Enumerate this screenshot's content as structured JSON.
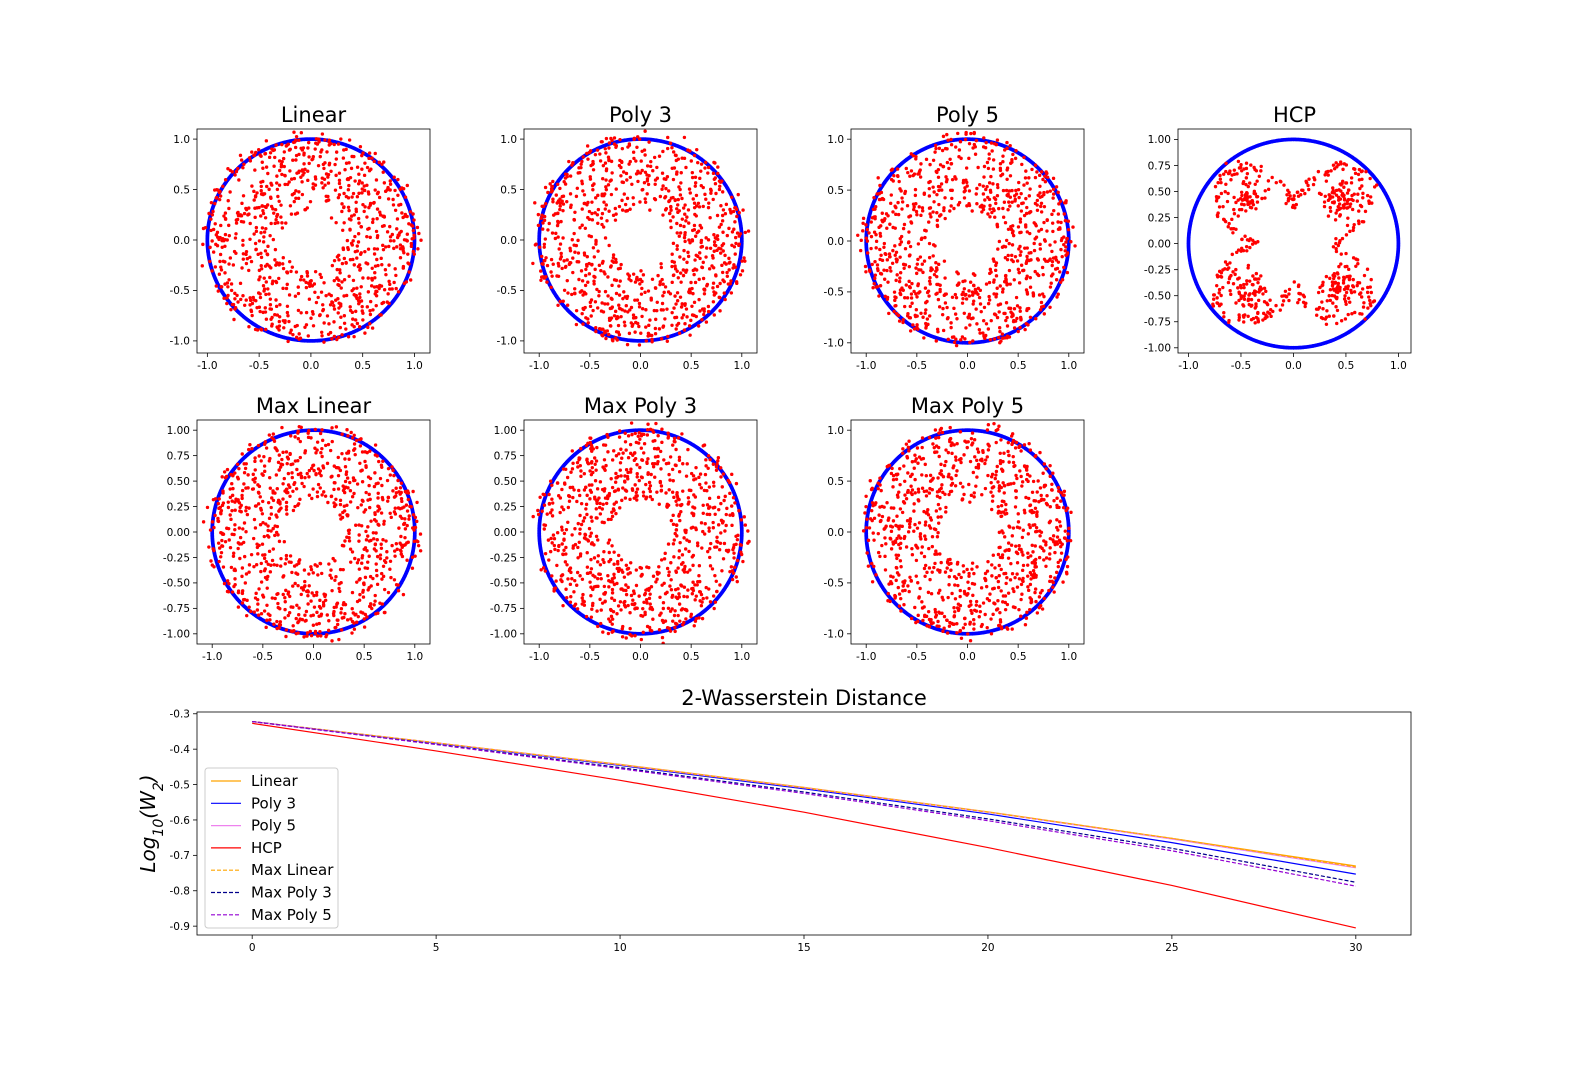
{
  "chart_data": [
    {
      "type": "scatter",
      "title": "Linear",
      "xlim": [
        -1.1,
        1.15
      ],
      "ylim": [
        -1.12,
        1.1
      ],
      "xticks": [
        "-1.0",
        "-0.5",
        "0.0",
        "0.5",
        "1.0"
      ],
      "yticks": [
        "-1.0",
        "-0.5",
        "0.0",
        "0.5",
        "1.0"
      ],
      "circle_color": "#0000ff",
      "point_color": "#ff0000",
      "pattern": "annulus",
      "inner_radius": 0.3,
      "outer_radius": 1.05,
      "n_points": 900
    },
    {
      "type": "scatter",
      "title": "Poly 3",
      "xlim": [
        -1.15,
        1.15
      ],
      "ylim": [
        -1.12,
        1.1
      ],
      "xticks": [
        "-1.0",
        "-0.5",
        "0.0",
        "0.5",
        "1.0"
      ],
      "yticks": [
        "-1.0",
        "-0.5",
        "0.0",
        "0.5",
        "1.0"
      ],
      "circle_color": "#0000ff",
      "point_color": "#ff0000",
      "pattern": "annulus",
      "inner_radius": 0.3,
      "outer_radius": 1.05,
      "n_points": 900
    },
    {
      "type": "scatter",
      "title": "Poly 5",
      "xlim": [
        -1.15,
        1.15
      ],
      "ylim": [
        -1.1,
        1.1
      ],
      "xticks": [
        "-1.0",
        "-0.5",
        "0.0",
        "0.5",
        "1.0"
      ],
      "yticks": [
        "-1.0",
        "-0.5",
        "0.0",
        "0.5",
        "1.0"
      ],
      "circle_color": "#0000ff",
      "point_color": "#ff0000",
      "pattern": "annulus",
      "inner_radius": 0.3,
      "outer_radius": 1.05,
      "n_points": 900
    },
    {
      "type": "scatter",
      "title": "HCP",
      "xlim": [
        -1.1,
        1.12
      ],
      "ylim": [
        -1.05,
        1.1
      ],
      "xticks": [
        "-1.0",
        "-0.5",
        "0.0",
        "0.5",
        "1.0"
      ],
      "yticks": [
        "-1.00",
        "-0.75",
        "-0.50",
        "-0.25",
        "0.00",
        "0.25",
        "0.50",
        "0.75",
        "1.00"
      ],
      "circle_color": "#0000ff",
      "point_color": "#ff0000",
      "pattern": "star",
      "n_points": 600
    },
    {
      "type": "scatter",
      "title": "Max Linear",
      "xlim": [
        -1.15,
        1.15
      ],
      "ylim": [
        -1.1,
        1.1
      ],
      "xticks": [
        "-1.0",
        "-0.5",
        "0.0",
        "0.5",
        "1.0"
      ],
      "yticks": [
        "-1.00",
        "-0.75",
        "-0.50",
        "-0.25",
        "0.00",
        "0.25",
        "0.50",
        "0.75",
        "1.00"
      ],
      "circle_color": "#0000ff",
      "point_color": "#ff0000",
      "pattern": "annulus",
      "inner_radius": 0.3,
      "outer_radius": 1.05,
      "n_points": 900
    },
    {
      "type": "scatter",
      "title": "Max Poly 3",
      "xlim": [
        -1.15,
        1.15
      ],
      "ylim": [
        -1.1,
        1.1
      ],
      "xticks": [
        "-1.0",
        "-0.5",
        "0.0",
        "0.5",
        "1.0"
      ],
      "yticks": [
        "-1.00",
        "-0.75",
        "-0.50",
        "-0.25",
        "0.00",
        "0.25",
        "0.50",
        "0.75",
        "1.00"
      ],
      "circle_color": "#0000ff",
      "point_color": "#ff0000",
      "pattern": "annulus",
      "inner_radius": 0.3,
      "outer_radius": 1.05,
      "n_points": 900
    },
    {
      "type": "scatter",
      "title": "Max Poly 5",
      "xlim": [
        -1.15,
        1.15
      ],
      "ylim": [
        -1.1,
        1.1
      ],
      "xticks": [
        "-1.0",
        "-0.5",
        "0.0",
        "0.5",
        "1.0"
      ],
      "yticks": [
        "-1.0",
        "-0.5",
        "0.0",
        "0.5",
        "1.0"
      ],
      "circle_color": "#0000ff",
      "point_color": "#ff0000",
      "pattern": "annulus",
      "inner_radius": 0.3,
      "outer_radius": 1.05,
      "n_points": 900
    },
    {
      "type": "line",
      "title": "2-Wasserstein Distance",
      "ylabel": "Log10(W2)",
      "xlim": [
        -1.5,
        31.5
      ],
      "ylim": [
        -0.925,
        -0.295
      ],
      "xticks": [
        "0",
        "5",
        "10",
        "15",
        "20",
        "25",
        "30"
      ],
      "yticks": [
        "-0.9",
        "-0.8",
        "-0.7",
        "-0.6",
        "-0.5",
        "-0.4",
        "-0.3"
      ],
      "legend_position": "center-left",
      "x": [
        0,
        5,
        10,
        15,
        20,
        25,
        30
      ],
      "series": [
        {
          "name": "Linear",
          "color": "#ffa500",
          "dash": "solid",
          "values": [
            -0.322,
            -0.382,
            -0.443,
            -0.508,
            -0.577,
            -0.652,
            -0.73
          ]
        },
        {
          "name": "Poly 3",
          "color": "#0000ff",
          "dash": "solid",
          "values": [
            -0.322,
            -0.383,
            -0.446,
            -0.512,
            -0.583,
            -0.664,
            -0.753
          ]
        },
        {
          "name": "Poly 5",
          "color": "#ee82ee",
          "dash": "solid",
          "values": [
            -0.322,
            -0.382,
            -0.444,
            -0.509,
            -0.578,
            -0.654,
            -0.735
          ]
        },
        {
          "name": "HCP",
          "color": "#ff0000",
          "dash": "solid",
          "values": [
            -0.327,
            -0.405,
            -0.488,
            -0.578,
            -0.678,
            -0.785,
            -0.905
          ]
        },
        {
          "name": "Max Linear",
          "color": "#ffa500",
          "dash": "dashed",
          "values": [
            -0.322,
            -0.382,
            -0.444,
            -0.509,
            -0.578,
            -0.652,
            -0.733
          ]
        },
        {
          "name": "Max Poly 3",
          "color": "#00008b",
          "dash": "dashed",
          "values": [
            -0.322,
            -0.386,
            -0.452,
            -0.521,
            -0.597,
            -0.68,
            -0.776
          ]
        },
        {
          "name": "Max Poly 5",
          "color": "#9400d3",
          "dash": "dashed",
          "values": [
            -0.322,
            -0.387,
            -0.455,
            -0.525,
            -0.602,
            -0.687,
            -0.787
          ]
        }
      ]
    }
  ]
}
